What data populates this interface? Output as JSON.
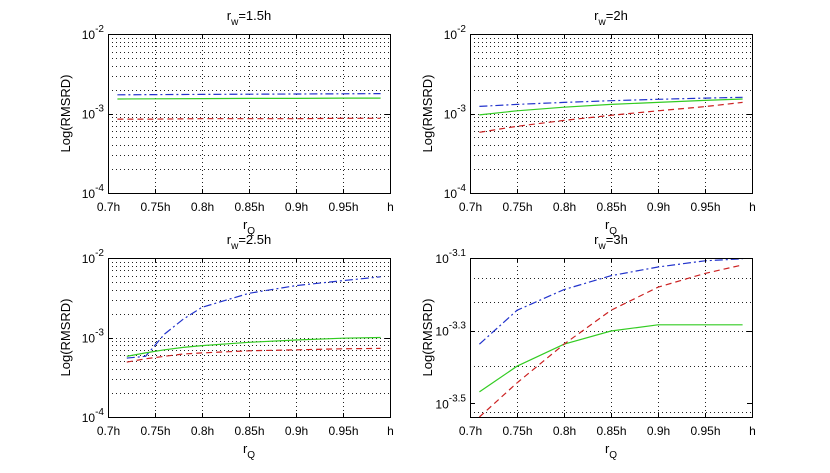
{
  "chart_data": [
    {
      "type": "line",
      "title": "r_w=1.5h",
      "xlabel": "r_Q",
      "ylabel": "Log(RMSRD)",
      "yscale": "log",
      "xlim": [
        0.7,
        1.0
      ],
      "ylim": [
        0.0001,
        0.01
      ],
      "x_ticks": [
        0.7,
        0.75,
        0.8,
        0.85,
        0.9,
        0.95,
        1.0
      ],
      "x_tick_labels": [
        "0.7h",
        "0.75h",
        "0.8h",
        "0.85h",
        "0.9h",
        "0.95h",
        "h"
      ],
      "y_ticks": [
        0.0001,
        0.001,
        0.01
      ],
      "y_tick_labels": [
        {
          "base": "10",
          "exp": "-4"
        },
        {
          "base": "10",
          "exp": "-3"
        },
        {
          "base": "10",
          "exp": "-2"
        }
      ],
      "grid": true,
      "x": [
        0.71,
        0.75,
        0.8,
        0.85,
        0.9,
        0.95,
        0.99
      ],
      "series": [
        {
          "name": "blue dash-dot",
          "color": "#2233cc",
          "dash": "8 3 2 3",
          "values": [
            0.00172,
            0.00173,
            0.00174,
            0.00175,
            0.00176,
            0.00177,
            0.00178
          ]
        },
        {
          "name": "green solid",
          "color": "#33cc22",
          "dash": "",
          "values": [
            0.00152,
            0.00153,
            0.00154,
            0.00155,
            0.00155,
            0.00156,
            0.00156
          ]
        },
        {
          "name": "red dashed",
          "color": "#cc2222",
          "dash": "6 4",
          "values": [
            0.00085,
            0.00085,
            0.00086,
            0.00086,
            0.00086,
            0.00087,
            0.00087
          ]
        }
      ]
    },
    {
      "type": "line",
      "title": "r_w=2h",
      "xlabel": "r_Q",
      "ylabel": "Log(RMSRD)",
      "yscale": "log",
      "xlim": [
        0.7,
        1.0
      ],
      "ylim": [
        0.0001,
        0.01
      ],
      "x_ticks": [
        0.7,
        0.75,
        0.8,
        0.85,
        0.9,
        0.95,
        1.0
      ],
      "x_tick_labels": [
        "0.7h",
        "0.75h",
        "0.8h",
        "0.85h",
        "0.9h",
        "0.95h",
        "h"
      ],
      "y_ticks": [
        0.0001,
        0.001,
        0.01
      ],
      "y_tick_labels": [
        {
          "base": "10",
          "exp": "-4"
        },
        {
          "base": "10",
          "exp": "-3"
        },
        {
          "base": "10",
          "exp": "-2"
        }
      ],
      "grid": true,
      "x": [
        0.71,
        0.75,
        0.8,
        0.85,
        0.9,
        0.95,
        0.99
      ],
      "series": [
        {
          "name": "blue dash-dot",
          "color": "#2233cc",
          "dash": "8 3 2 3",
          "values": [
            0.00123,
            0.0013,
            0.00138,
            0.00145,
            0.00151,
            0.00156,
            0.0016
          ]
        },
        {
          "name": "green solid",
          "color": "#33cc22",
          "dash": "",
          "values": [
            0.00096,
            0.00108,
            0.0012,
            0.0013,
            0.00138,
            0.00146,
            0.00152
          ]
        },
        {
          "name": "red dashed",
          "color": "#cc2222",
          "dash": "6 4",
          "values": [
            0.00058,
            0.00069,
            0.00082,
            0.00095,
            0.00108,
            0.00122,
            0.00138
          ]
        }
      ]
    },
    {
      "type": "line",
      "title": "r_w=2.5h",
      "xlabel": "r_Q",
      "ylabel": "Log(RMSRD)",
      "yscale": "log",
      "xlim": [
        0.7,
        1.0
      ],
      "ylim": [
        0.0001,
        0.01
      ],
      "x_ticks": [
        0.7,
        0.75,
        0.8,
        0.85,
        0.9,
        0.95,
        1.0
      ],
      "x_tick_labels": [
        "0.7h",
        "0.75h",
        "0.8h",
        "0.85h",
        "0.9h",
        "0.95h",
        "h"
      ],
      "y_ticks": [
        0.0001,
        0.001,
        0.01
      ],
      "y_tick_labels": [
        {
          "base": "10",
          "exp": "-4"
        },
        {
          "base": "10",
          "exp": "-3"
        },
        {
          "base": "10",
          "exp": "-2"
        }
      ],
      "grid": true,
      "x": [
        0.72,
        0.74,
        0.76,
        0.78,
        0.8,
        0.85,
        0.9,
        0.95,
        0.99
      ],
      "series": [
        {
          "name": "blue dash-dot",
          "color": "#2233cc",
          "dash": "8 3 2 3",
          "values": [
            0.00055,
            0.00058,
            0.0011,
            0.0017,
            0.0024,
            0.0036,
            0.0045,
            0.0052,
            0.0058
          ]
        },
        {
          "name": "green solid",
          "color": "#33cc22",
          "dash": "",
          "values": [
            0.00058,
            0.00064,
            0.0007,
            0.00075,
            0.00079,
            0.00087,
            0.00093,
            0.00098,
            0.001
          ]
        },
        {
          "name": "red dashed",
          "color": "#cc2222",
          "dash": "6 4",
          "values": [
            0.00049,
            0.00054,
            0.00058,
            0.00062,
            0.00064,
            0.00068,
            0.0007,
            0.00072,
            0.00073
          ]
        }
      ]
    },
    {
      "type": "line",
      "title": "r_w=3h",
      "xlabel": "r_Q",
      "ylabel": "Log(RMSRD)",
      "yscale": "log",
      "xlim": [
        0.7,
        1.0
      ],
      "ylim": [
        0.00029,
        0.000794
      ],
      "x_ticks": [
        0.7,
        0.75,
        0.8,
        0.85,
        0.9,
        0.95,
        1.0
      ],
      "x_tick_labels": [
        "0.7h",
        "0.75h",
        "0.8h",
        "0.85h",
        "0.9h",
        "0.95h",
        "h"
      ],
      "y_ticks": [
        0.000316,
        0.000501,
        0.000794
      ],
      "y_tick_labels": [
        {
          "base": "10",
          "exp": "-3.5"
        },
        {
          "base": "10",
          "exp": "-3.3"
        },
        {
          "base": "10",
          "exp": "-3.1"
        }
      ],
      "grid": true,
      "x": [
        0.71,
        0.75,
        0.8,
        0.85,
        0.9,
        0.95,
        0.99
      ],
      "series": [
        {
          "name": "blue dash-dot",
          "color": "#2233cc",
          "dash": "8 3 2 3",
          "values": [
            0.00046,
            0.00057,
            0.00065,
            0.00071,
            0.00075,
            0.00078,
            0.00079
          ]
        },
        {
          "name": "green solid",
          "color": "#33cc22",
          "dash": "",
          "values": [
            0.00034,
            0.0004,
            0.00046,
            0.0005,
            0.00052,
            0.00052,
            0.00052
          ]
        },
        {
          "name": "red dashed",
          "color": "#cc2222",
          "dash": "6 4",
          "values": [
            0.00029,
            0.00036,
            0.00046,
            0.00057,
            0.00066,
            0.00072,
            0.00076
          ]
        }
      ]
    }
  ]
}
